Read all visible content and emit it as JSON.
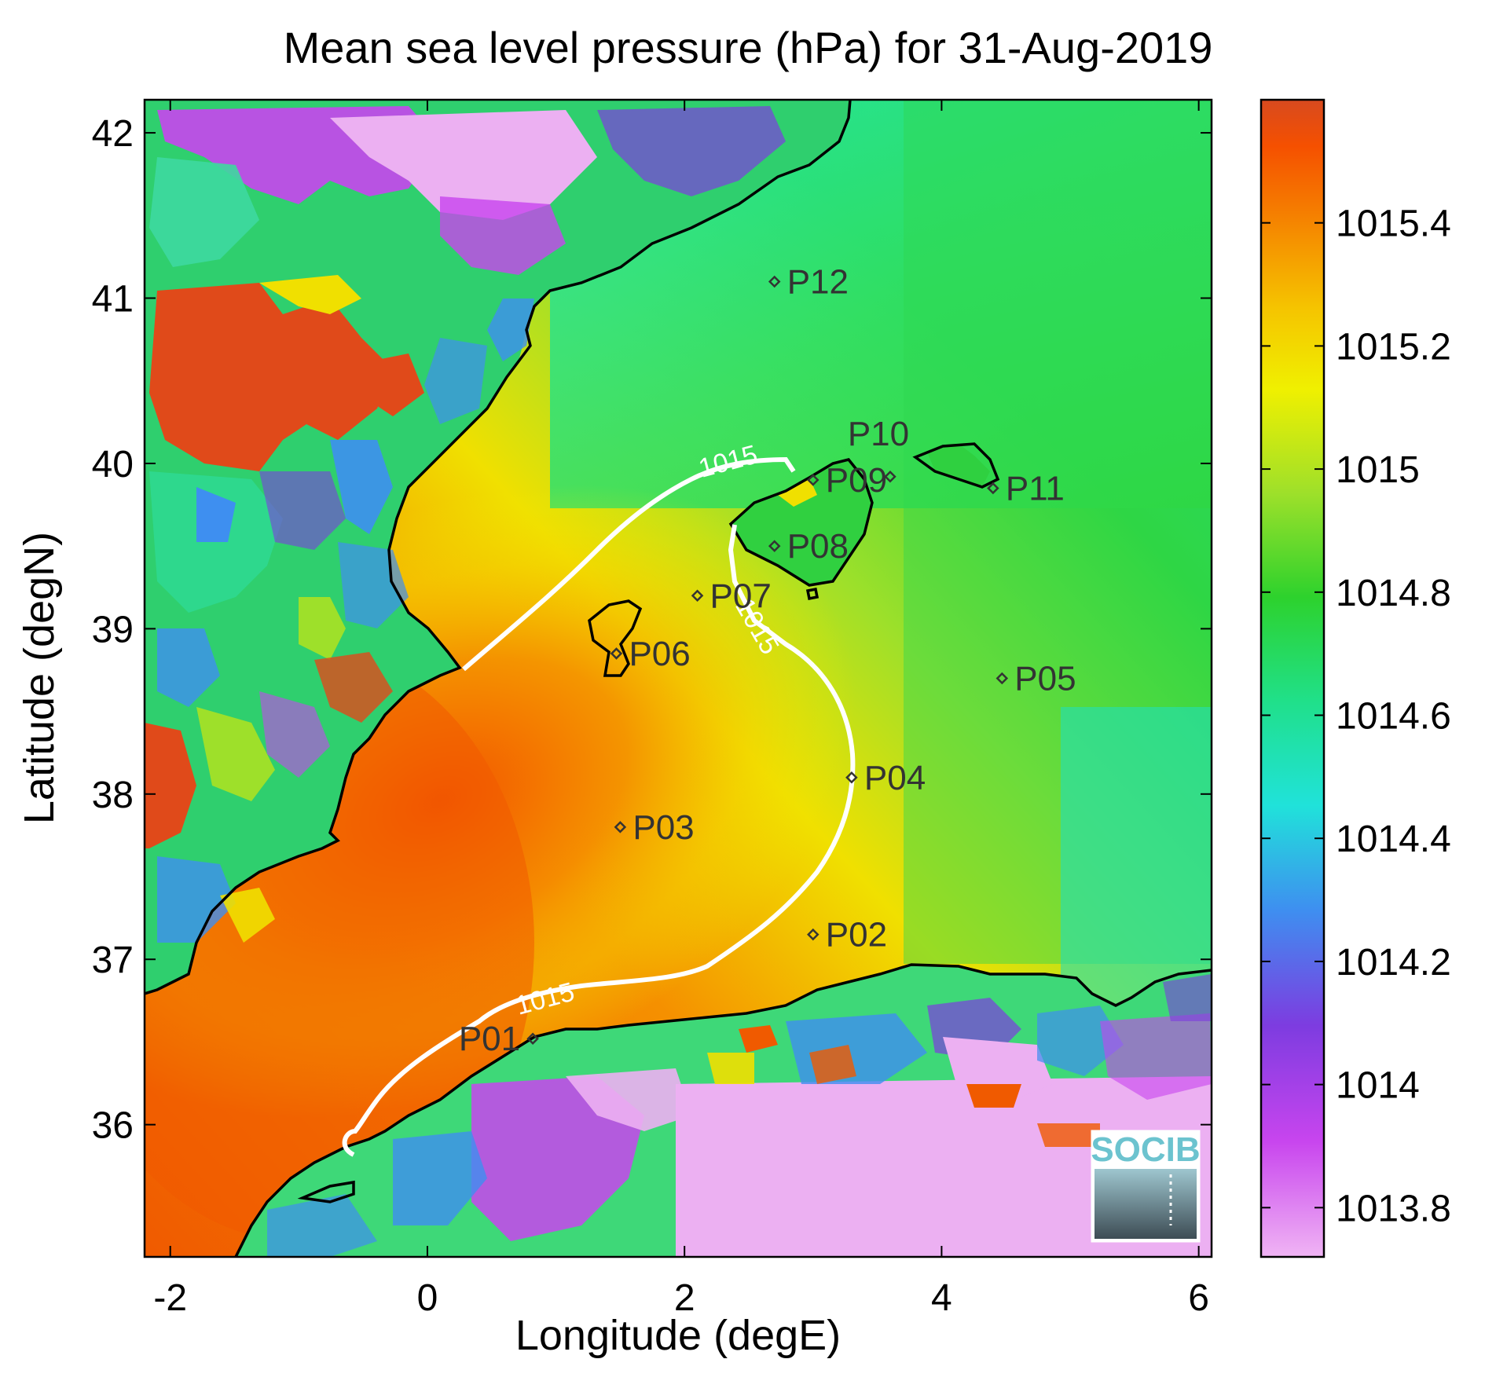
{
  "title": "Mean sea level pressure (hPa) for 31-Aug-2019",
  "x_axis": {
    "label": "Longitude (degE)",
    "range": [
      -2.2,
      6.1
    ],
    "ticks": [
      -2,
      0,
      2,
      4,
      6
    ],
    "tick_labels": [
      "-2",
      "0",
      "2",
      "4",
      "6"
    ]
  },
  "y_axis": {
    "label": "Latitude (degN)",
    "range": [
      35.2,
      42.2
    ],
    "ticks": [
      36,
      37,
      38,
      39,
      40,
      41,
      42
    ],
    "tick_labels": [
      "36",
      "37",
      "38",
      "39",
      "40",
      "41",
      "42"
    ]
  },
  "colorbar": {
    "range": [
      1013.72,
      1015.6
    ],
    "ticks": [
      1013.8,
      1014,
      1014.2,
      1014.4,
      1014.6,
      1014.8,
      1015,
      1015.2,
      1015.4
    ],
    "tick_labels": [
      "1013.8",
      "1014",
      "1014.2",
      "1014.4",
      "1014.6",
      "1014.8",
      "1015",
      "1015.2",
      "1015.4"
    ],
    "colors": [
      "#f0b4f4",
      "#c845ee",
      "#7d3ce0",
      "#3e8ff0",
      "#20e2da",
      "#20e070",
      "#2dd22d",
      "#9ee02a",
      "#f0f000",
      "#f5c400",
      "#f58c00",
      "#f55000",
      "#d84a1f"
    ]
  },
  "contour": {
    "level": 1015,
    "labels": [
      "1015",
      "1015",
      "1015"
    ],
    "color": "#ffffff"
  },
  "stations": [
    {
      "name": "P01",
      "lon": 0.82,
      "lat": 36.52
    },
    {
      "name": "P02",
      "lon": 3.0,
      "lat": 37.15
    },
    {
      "name": "P03",
      "lon": 1.5,
      "lat": 37.8
    },
    {
      "name": "P04",
      "lon": 3.3,
      "lat": 38.1
    },
    {
      "name": "P05",
      "lon": 4.47,
      "lat": 38.7
    },
    {
      "name": "P06",
      "lon": 1.47,
      "lat": 38.85
    },
    {
      "name": "P07",
      "lon": 2.1,
      "lat": 39.2
    },
    {
      "name": "P08",
      "lon": 2.7,
      "lat": 39.5
    },
    {
      "name": "P09",
      "lon": 3.0,
      "lat": 39.9
    },
    {
      "name": "P10",
      "lon": 3.6,
      "lat": 39.92
    },
    {
      "name": "P11",
      "lon": 4.4,
      "lat": 39.85
    },
    {
      "name": "P12",
      "lon": 2.7,
      "lat": 41.1
    }
  ],
  "logo": {
    "text": "SOCIB"
  },
  "chart_data": {
    "type": "heatmap",
    "title": "Mean sea level pressure (hPa) for 31-Aug-2019",
    "xlabel": "Longitude (degE)",
    "ylabel": "Latitude (degN)",
    "xlim": [
      -2.2,
      6.1
    ],
    "ylim": [
      35.2,
      42.2
    ],
    "colorbar_range": [
      1013.72,
      1015.6
    ],
    "grid": false,
    "contour_levels": [
      1015
    ],
    "field_description": {
      "maximum_region": {
        "lon": [
          -2.0,
          1.5
        ],
        "lat": [
          36.5,
          38.5
        ],
        "value": 1015.35
      },
      "sea_east": {
        "lon": [
          4.0,
          6.0
        ],
        "lat": [
          37.0,
          41.0
        ],
        "value": 1014.8
      },
      "inland_high_spots": {
        "value": 1015.5
      },
      "inland_low_areas": {
        "value": 1013.8
      }
    },
    "station_points": [
      {
        "name": "P01",
        "x": 0.82,
        "y": 36.52
      },
      {
        "name": "P02",
        "x": 3.0,
        "y": 37.15
      },
      {
        "name": "P03",
        "x": 1.5,
        "y": 37.8
      },
      {
        "name": "P04",
        "x": 3.3,
        "y": 38.1
      },
      {
        "name": "P05",
        "x": 4.47,
        "y": 38.7
      },
      {
        "name": "P06",
        "x": 1.47,
        "y": 38.85
      },
      {
        "name": "P07",
        "x": 2.1,
        "y": 39.2
      },
      {
        "name": "P08",
        "x": 2.7,
        "y": 39.5
      },
      {
        "name": "P09",
        "x": 3.0,
        "y": 39.9
      },
      {
        "name": "P10",
        "x": 3.6,
        "y": 39.92
      },
      {
        "name": "P11",
        "x": 4.4,
        "y": 39.85
      },
      {
        "name": "P12",
        "x": 2.7,
        "y": 41.1
      }
    ]
  }
}
